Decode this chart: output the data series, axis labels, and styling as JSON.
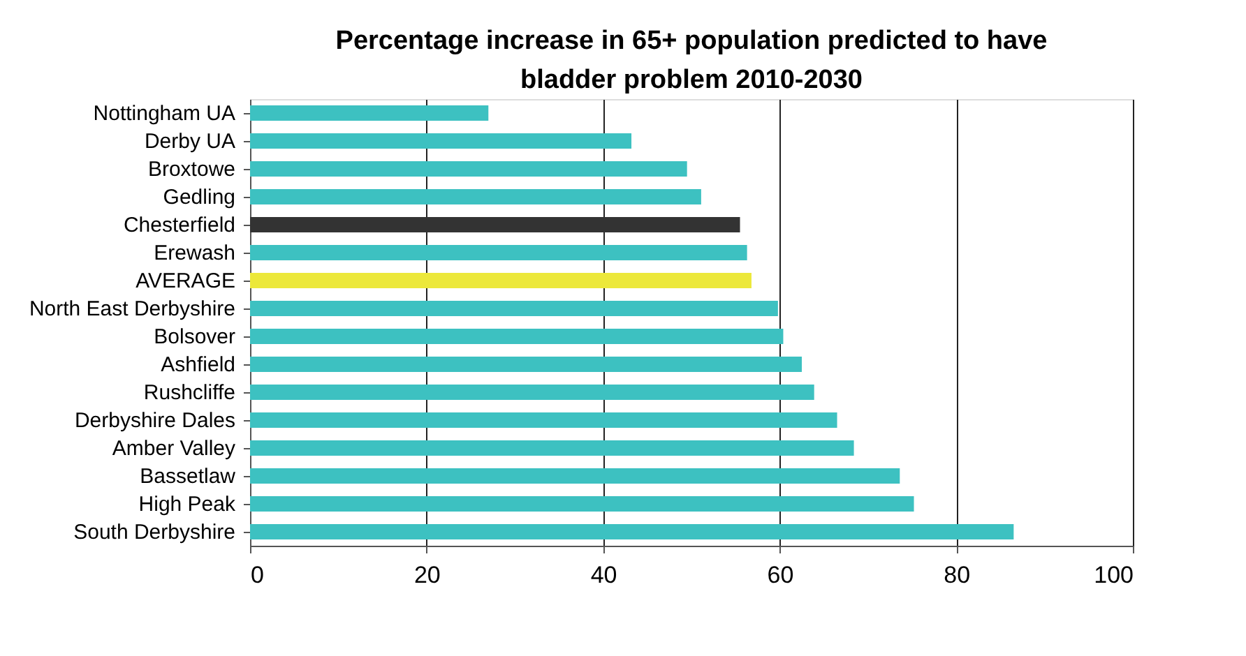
{
  "chart_data": {
    "type": "bar",
    "orientation": "horizontal",
    "title": "Percentage increase in 65+ population predicted to have bladder problem 2010-2030",
    "categories": [
      "Nottingham UA",
      "Derby UA",
      "Broxtowe",
      "Gedling",
      "Chesterfield",
      "Erewash",
      "AVERAGE",
      "North East Derbyshire",
      "Bolsover",
      "Ashfield",
      "Rushcliffe",
      "Derbyshire Dales",
      "Amber Valley",
      "Bassetlaw",
      "High Peak",
      "South Derbyshire"
    ],
    "values": [
      27.0,
      43.2,
      49.5,
      51.1,
      55.5,
      56.3,
      56.8,
      59.8,
      60.4,
      62.5,
      63.9,
      66.5,
      68.4,
      73.6,
      75.2,
      86.5
    ],
    "colors": [
      "#3dc1c1",
      "#3dc1c1",
      "#3dc1c1",
      "#3dc1c1",
      "#333333",
      "#3dc1c1",
      "#ece83a",
      "#3dc1c1",
      "#3dc1c1",
      "#3dc1c1",
      "#3dc1c1",
      "#3dc1c1",
      "#3dc1c1",
      "#3dc1c1",
      "#3dc1c1",
      "#3dc1c1"
    ],
    "xlim": [
      0,
      100
    ],
    "xticks": [
      0,
      20,
      40,
      60,
      80,
      100
    ],
    "grid": "x"
  }
}
